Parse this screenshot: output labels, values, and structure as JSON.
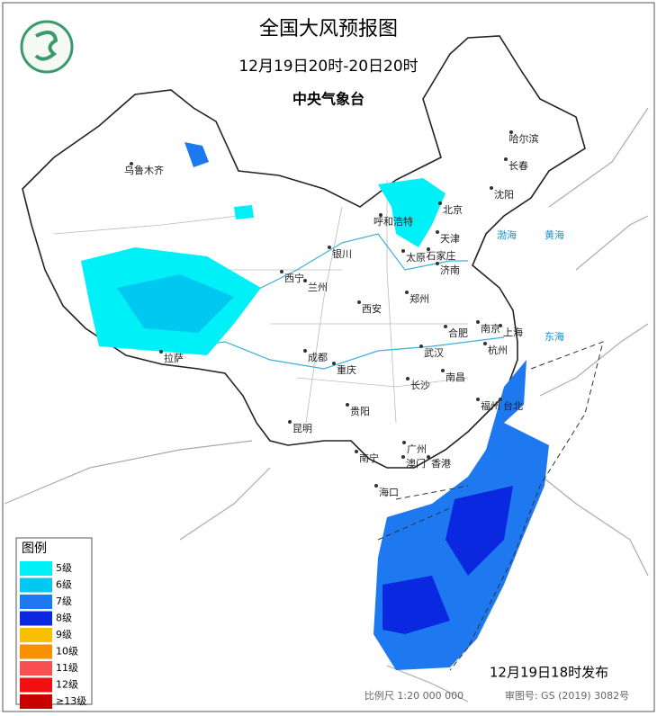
{
  "header": {
    "title": "全国大风预报图",
    "subtitle": "12月19日20时-20日20时",
    "issuer": "中央气象台"
  },
  "legend": {
    "title": "图例",
    "items": [
      {
        "label": "5级",
        "color": "#00f0f8"
      },
      {
        "label": "6级",
        "color": "#00c8f0"
      },
      {
        "label": "7级",
        "color": "#1e78f0"
      },
      {
        "label": "8级",
        "color": "#0a28e0"
      },
      {
        "label": "9级",
        "color": "#f8c000"
      },
      {
        "label": "10级",
        "color": "#f89000"
      },
      {
        "label": "11级",
        "color": "#f85050"
      },
      {
        "label": "12级",
        "color": "#f01010"
      },
      {
        "label": "≥13级",
        "color": "#c80000"
      }
    ]
  },
  "cities": [
    "乌鲁木齐",
    "哈尔滨",
    "长春",
    "沈阳",
    "呼和浩特",
    "北京",
    "天津",
    "太原",
    "石家庄",
    "济南",
    "银川",
    "西宁",
    "兰州",
    "郑州",
    "西安",
    "合肥",
    "南京",
    "上海",
    "杭州",
    "武汉",
    "成都",
    "重庆",
    "拉萨",
    "长沙",
    "南昌",
    "福州",
    "台北",
    "贵阳",
    "昆明",
    "广州",
    "南宁",
    "澳门",
    "香港",
    "海口"
  ],
  "seas": [
    "渤海",
    "黄海",
    "东海"
  ],
  "footer": {
    "issued": "12月19日18时发布",
    "scale": "比例尺 1:20 000 000",
    "approval": "审图号: GS (2019) 3082号"
  }
}
